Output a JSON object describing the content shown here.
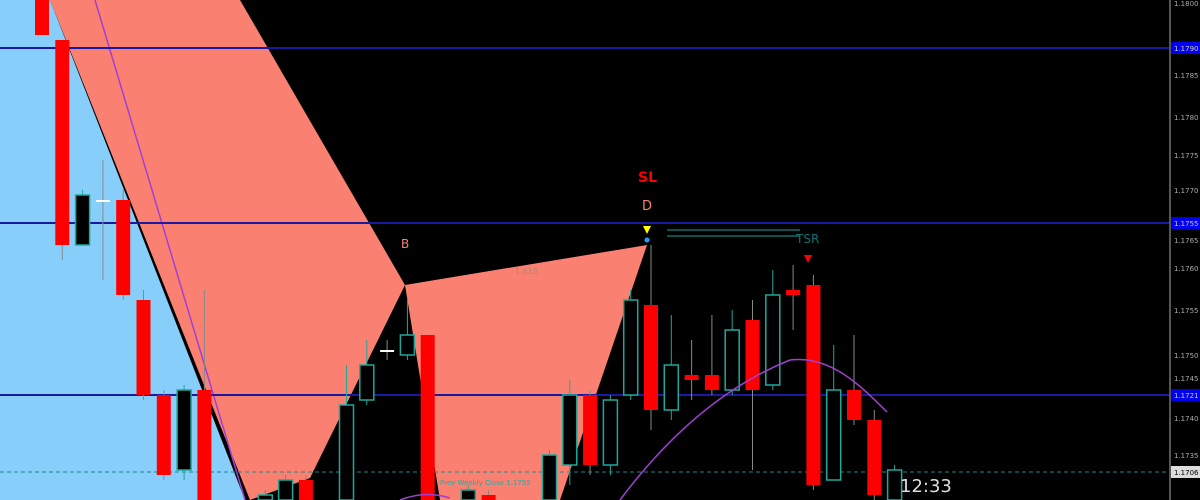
{
  "colors": {
    "bull_outline": "#1fa89a",
    "bear": "#ff0000",
    "pattern_fill": "#fa8072",
    "left_fill": "#87cefa",
    "level_line": "#1a1aa0",
    "ma": "#a040d0",
    "close_line": "#1a8a8a"
  },
  "labels": {
    "sl": "SL",
    "d": "D",
    "b": "B",
    "ratio": "1.618",
    "tsr": "TSR",
    "prev_close": "Prev Weekly Close 1.1755",
    "timer": "12:33"
  },
  "price_axis": {
    "ticks": [
      "1.1800",
      "1.1785",
      "1.1780",
      "1.1775",
      "1.1770",
      "1.1765",
      "1.1760",
      "1.1755",
      "1.1750",
      "1.1745",
      "1.1740",
      "1.1735"
    ],
    "level_marks": [
      "1.1790",
      "1.1755",
      "1.1721"
    ],
    "current_price": "1.1706"
  },
  "chart_data": {
    "type": "candlestick",
    "candles": [
      {
        "o": 1.18,
        "c": 1.1793,
        "h": 1.18,
        "l": 1.1793
      },
      {
        "o": 1.1792,
        "c": 1.1751,
        "h": 1.1792,
        "l": 1.1748
      },
      {
        "o": 1.1751,
        "c": 1.1761,
        "h": 1.1762,
        "l": 1.1751
      },
      {
        "o": 1.176,
        "c": 1.176,
        "h": 1.1768,
        "l": 1.1744
      },
      {
        "o": 1.176,
        "c": 1.1741,
        "h": 1.1762,
        "l": 1.174
      },
      {
        "o": 1.174,
        "c": 1.1721,
        "h": 1.1742,
        "l": 1.172
      },
      {
        "o": 1.1721,
        "c": 1.1705,
        "h": 1.1722,
        "l": 1.1704
      },
      {
        "o": 1.1706,
        "c": 1.1722,
        "h": 1.1723,
        "l": 1.1704
      },
      {
        "o": 1.1722,
        "c": 1.17,
        "h": 1.1742,
        "l": 1.17
      },
      null,
      null,
      {
        "o": 1.17,
        "c": 1.1701,
        "h": 1.1702,
        "l": 1.17
      },
      {
        "o": 1.17,
        "c": 1.1704,
        "h": 1.1705,
        "l": 1.17
      },
      {
        "o": 1.1704,
        "c": 1.17,
        "h": 1.1705,
        "l": 1.17
      },
      null,
      {
        "o": 1.17,
        "c": 1.1719,
        "h": 1.1727,
        "l": 1.17
      },
      {
        "o": 1.172,
        "c": 1.1727,
        "h": 1.1732,
        "l": 1.1719
      },
      {
        "o": 1.173,
        "c": 1.173,
        "h": 1.1732,
        "l": 1.1728
      },
      {
        "o": 1.1729,
        "c": 1.1733,
        "h": 1.174,
        "l": 1.1728
      },
      {
        "o": 1.1733,
        "c": 1.17,
        "h": 1.1733,
        "l": 1.17
      },
      null,
      {
        "o": 1.17,
        "c": 1.1702,
        "h": 1.1703,
        "l": 1.17
      },
      {
        "o": 1.1701,
        "c": 1.17,
        "h": 1.1702,
        "l": 1.17
      },
      null,
      null,
      {
        "o": 1.17,
        "c": 1.1709,
        "h": 1.171,
        "l": 1.17
      },
      {
        "o": 1.1707,
        "c": 1.1721,
        "h": 1.1724,
        "l": 1.1703
      },
      {
        "o": 1.1721,
        "c": 1.1707,
        "h": 1.1722,
        "l": 1.1705
      },
      {
        "o": 1.1707,
        "c": 1.172,
        "h": 1.1721,
        "l": 1.1705
      },
      {
        "o": 1.1721,
        "c": 1.174,
        "h": 1.1742,
        "l": 1.172
      },
      {
        "o": 1.1739,
        "c": 1.1718,
        "h": 1.1751,
        "l": 1.1714
      },
      {
        "o": 1.1718,
        "c": 1.1727,
        "h": 1.1737,
        "l": 1.1716
      },
      {
        "o": 1.1725,
        "c": 1.1724,
        "h": 1.1732,
        "l": 1.172
      },
      {
        "o": 1.1725,
        "c": 1.1722,
        "h": 1.1737,
        "l": 1.1721
      },
      {
        "o": 1.1722,
        "c": 1.1734,
        "h": 1.1738,
        "l": 1.1721
      },
      {
        "o": 1.1736,
        "c": 1.1722,
        "h": 1.174,
        "l": 1.1706
      },
      {
        "o": 1.1723,
        "c": 1.1741,
        "h": 1.1746,
        "l": 1.1722
      },
      {
        "o": 1.1742,
        "c": 1.1741,
        "h": 1.1747,
        "l": 1.1734
      },
      {
        "o": 1.1743,
        "c": 1.1703,
        "h": 1.1745,
        "l": 1.1702
      },
      {
        "o": 1.1704,
        "c": 1.1722,
        "h": 1.1731,
        "l": 1.1704
      },
      {
        "o": 1.1722,
        "c": 1.1716,
        "h": 1.1733,
        "l": 1.1715
      },
      {
        "o": 1.1716,
        "c": 1.1701,
        "h": 1.1718,
        "l": 1.17
      },
      {
        "o": 1.17,
        "c": 1.1706,
        "h": 1.1707,
        "l": 1.17
      }
    ]
  }
}
